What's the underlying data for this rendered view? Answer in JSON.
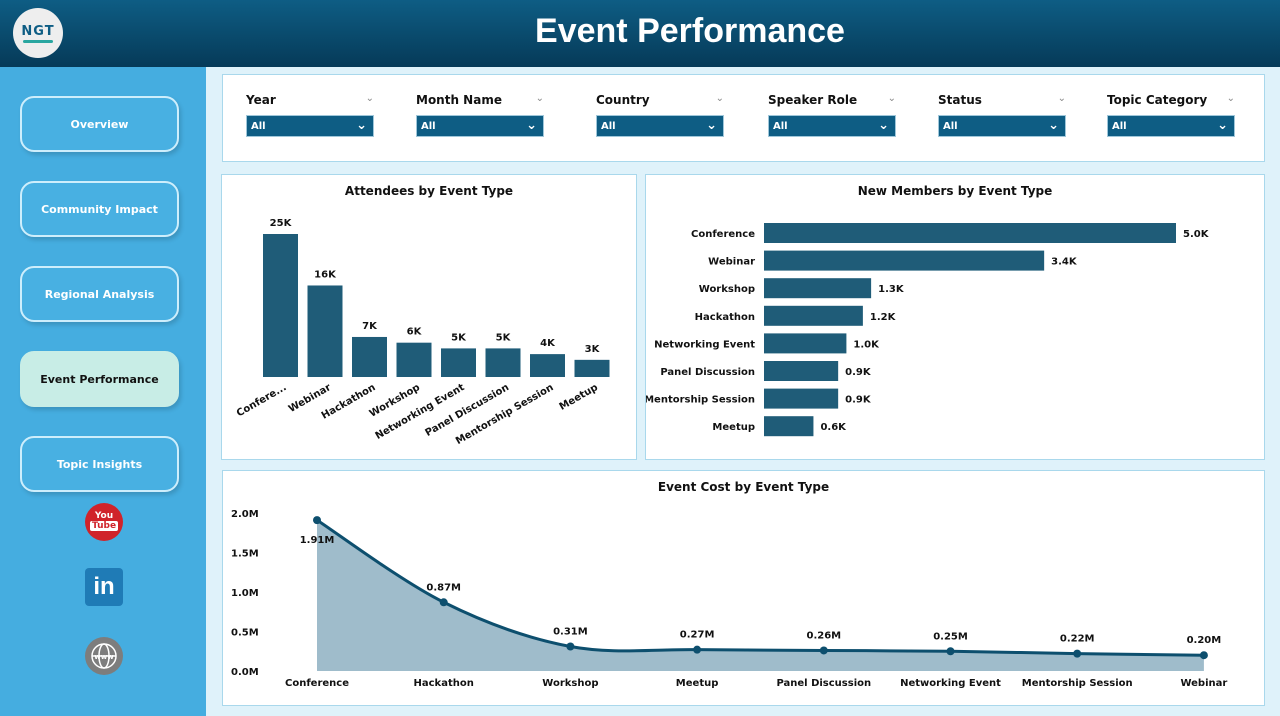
{
  "header": {
    "title": "Event Performance",
    "logo_text": "NGT"
  },
  "sidebar": {
    "items": [
      {
        "label": "Overview",
        "active": false
      },
      {
        "label": "Community Impact",
        "active": false
      },
      {
        "label": "Regional Analysis",
        "active": false
      },
      {
        "label": "Event Performance",
        "active": true
      },
      {
        "label": "Topic Insights",
        "active": false
      }
    ],
    "social": [
      {
        "icon": "youtube-icon",
        "text": "You Tube"
      },
      {
        "icon": "linkedin-icon",
        "text": "in"
      },
      {
        "icon": "website-icon",
        "text": "www"
      }
    ]
  },
  "filters": [
    {
      "label": "Year",
      "value": "All"
    },
    {
      "label": "Month Name",
      "value": "All"
    },
    {
      "label": "Country",
      "value": "All"
    },
    {
      "label": "Speaker Role",
      "value": "All"
    },
    {
      "label": "Status",
      "value": "All"
    },
    {
      "label": "Topic Category",
      "value": "All"
    }
  ],
  "colors": {
    "bar": "#1f5c78",
    "line": "#0d4f6e",
    "area": "#9fbccb",
    "header": "#0e5d84",
    "sidebar": "#45ade0",
    "active": "#c8ede6"
  },
  "chart_data": [
    {
      "type": "bar",
      "title": "Attendees by Event Type",
      "categories": [
        "Confere...",
        "Webinar",
        "Hackathon",
        "Workshop",
        "Networking Event",
        "Panel Discussion",
        "Mentorship Session",
        "Meetup"
      ],
      "values": [
        25000,
        16000,
        7000,
        6000,
        5000,
        5000,
        4000,
        3000
      ],
      "labels": [
        "25K",
        "16K",
        "7K",
        "6K",
        "5K",
        "5K",
        "4K",
        "3K"
      ]
    },
    {
      "type": "bar",
      "orientation": "horizontal",
      "title": "New Members by Event Type",
      "categories": [
        "Conference",
        "Webinar",
        "Workshop",
        "Hackathon",
        "Networking Event",
        "Panel Discussion",
        "Mentorship Session",
        "Meetup"
      ],
      "values": [
        5000,
        3400,
        1300,
        1200,
        1000,
        900,
        900,
        600
      ],
      "labels": [
        "5.0K",
        "3.4K",
        "1.3K",
        "1.2K",
        "1.0K",
        "0.9K",
        "0.9K",
        "0.6K"
      ]
    },
    {
      "type": "area",
      "title": "Event Cost by Event Type",
      "categories": [
        "Conference",
        "Hackathon",
        "Workshop",
        "Meetup",
        "Panel Discussion",
        "Networking Event",
        "Mentorship Session",
        "Webinar"
      ],
      "values": [
        1.91,
        0.87,
        0.31,
        0.27,
        0.26,
        0.25,
        0.22,
        0.2
      ],
      "labels": [
        "1.91M",
        "0.87M",
        "0.31M",
        "0.27M",
        "0.26M",
        "0.25M",
        "0.22M",
        "0.20M"
      ],
      "ylim": [
        0,
        2.0
      ],
      "yticks": [
        "0.0M",
        "0.5M",
        "1.0M",
        "1.5M",
        "2.0M"
      ]
    }
  ]
}
